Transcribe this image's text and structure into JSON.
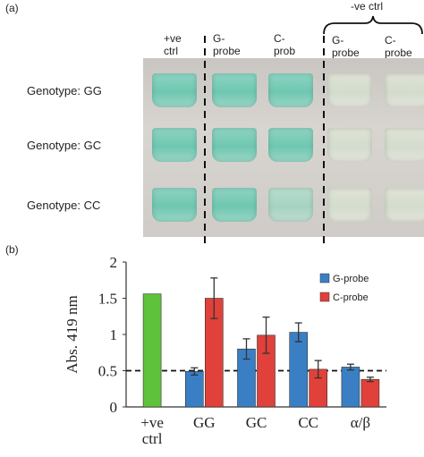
{
  "panel_a": {
    "label": "(a)",
    "neg_ctrl_label": "-ve ctrl",
    "columns": [
      {
        "line1": "+ve",
        "line2": "ctrl"
      },
      {
        "line1": "G-",
        "line2": "probe"
      },
      {
        "line1": "C-",
        "line2": "prob"
      },
      {
        "line1": "G-",
        "line2": "probe"
      },
      {
        "line1": "C-",
        "line2": "probe"
      }
    ],
    "rows": [
      "Genotype: GG",
      "Genotype: GC",
      "Genotype: CC"
    ]
  },
  "panel_b": {
    "label": "(b)"
  },
  "chart_data": {
    "type": "bar",
    "ylabel": "Abs. 419 nm",
    "ylim": [
      0,
      2
    ],
    "yticks": [
      "0",
      "0.5",
      "1",
      "1.5",
      "2"
    ],
    "categories": [
      "+ve ctrl",
      "GG",
      "GC",
      "CC",
      "α/β"
    ],
    "reference_line": 0.5,
    "control": {
      "category": "+ve ctrl",
      "value": 1.56,
      "color": "#5ec23a"
    },
    "series": [
      {
        "name": "G-probe",
        "color": "#3a7fc4",
        "values": [
          null,
          0.49,
          0.8,
          1.03,
          0.55
        ],
        "errors": [
          null,
          0.05,
          0.14,
          0.13,
          0.04
        ]
      },
      {
        "name": "C-probe",
        "color": "#e0413a",
        "values": [
          null,
          1.5,
          0.99,
          0.52,
          0.38
        ],
        "errors": [
          null,
          0.28,
          0.25,
          0.12,
          0.03
        ]
      }
    ],
    "legend_position": "right"
  }
}
